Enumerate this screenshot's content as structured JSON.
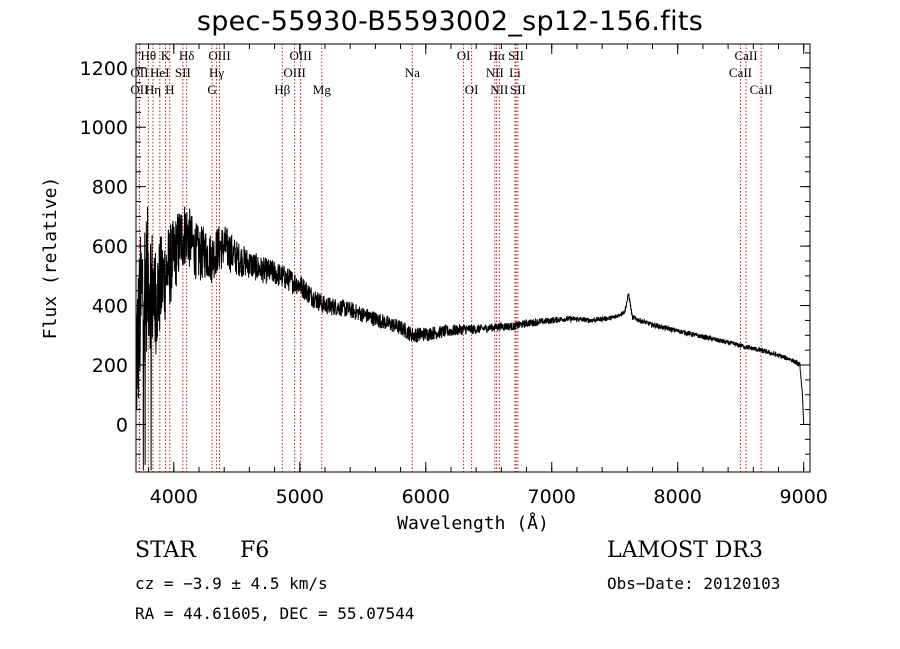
{
  "chart_data": {
    "type": "line",
    "title": "spec-55930-B5593002_sp12-156.fits",
    "xlabel": "Wavelength (Å)",
    "ylabel": "Flux (relative)",
    "xlim": [
      3700,
      9050
    ],
    "ylim": [
      -160,
      1280
    ],
    "xticks": [
      4000,
      5000,
      6000,
      7000,
      8000,
      9000
    ],
    "yticks": [
      0,
      200,
      400,
      600,
      800,
      1000,
      1200
    ],
    "lines": [
      {
        "label": "Hθ",
        "x": 3798,
        "row": 0
      },
      {
        "label": "OII",
        "x": 3727,
        "row": 1
      },
      {
        "label": "OII",
        "x": 3727,
        "row": 2
      },
      {
        "label": "K",
        "x": 3934,
        "row": 0
      },
      {
        "label": "Hη",
        "x": 3835,
        "row": 2
      },
      {
        "label": "HeI",
        "x": 3889,
        "row": 1
      },
      {
        "label": "H",
        "x": 3968,
        "row": 2
      },
      {
        "label": "SII",
        "x": 4072,
        "row": 1
      },
      {
        "label": "Hδ",
        "x": 4102,
        "row": 0
      },
      {
        "label": "OIII",
        "x": 4363,
        "row": 0
      },
      {
        "label": "Hγ",
        "x": 4340,
        "row": 1
      },
      {
        "label": "G",
        "x": 4304,
        "row": 2
      },
      {
        "label": "Hβ",
        "x": 4861,
        "row": 2
      },
      {
        "label": "OIII",
        "x": 5007,
        "row": 0
      },
      {
        "label": "OIII",
        "x": 4959,
        "row": 1
      },
      {
        "label": "Mg",
        "x": 5175,
        "row": 2
      },
      {
        "label": "Na",
        "x": 5893,
        "row": 1
      },
      {
        "label": "OI",
        "x": 6300,
        "row": 0
      },
      {
        "label": "OI",
        "x": 6364,
        "row": 2
      },
      {
        "label": "Hα",
        "x": 6563,
        "row": 0
      },
      {
        "label": "SII",
        "x": 6717,
        "row": 0
      },
      {
        "label": "NII",
        "x": 6548,
        "row": 1
      },
      {
        "label": "Li",
        "x": 6708,
        "row": 1
      },
      {
        "label": "NII",
        "x": 6584,
        "row": 2
      },
      {
        "label": "SII",
        "x": 6731,
        "row": 2
      },
      {
        "label": "CaII",
        "x": 8542,
        "row": 0
      },
      {
        "label": "CaII",
        "x": 8498,
        "row": 1
      },
      {
        "label": "CaII",
        "x": 8662,
        "row": 2
      }
    ],
    "spectrum": {
      "x": [
        3700,
        3750,
        3800,
        3850,
        3900,
        3950,
        4000,
        4050,
        4100,
        4150,
        4200,
        4250,
        4300,
        4350,
        4400,
        4450,
        4500,
        4600,
        4700,
        4800,
        4900,
        5000,
        5100,
        5200,
        5300,
        5400,
        5500,
        5600,
        5700,
        5800,
        5900,
        6000,
        6100,
        6200,
        6300,
        6400,
        6500,
        6600,
        6700,
        6800,
        6900,
        7000,
        7100,
        7200,
        7300,
        7400,
        7500,
        7580,
        7610,
        7640,
        7700,
        7800,
        7900,
        8000,
        8100,
        8200,
        8300,
        8400,
        8500,
        8600,
        8700,
        8800,
        8900,
        8970,
        8990,
        9000
      ],
      "y": [
        200,
        450,
        500,
        420,
        470,
        520,
        560,
        620,
        650,
        600,
        570,
        580,
        560,
        590,
        600,
        580,
        560,
        540,
        520,
        510,
        490,
        470,
        430,
        400,
        395,
        385,
        370,
        355,
        340,
        325,
        300,
        305,
        310,
        315,
        320,
        320,
        325,
        330,
        330,
        340,
        345,
        350,
        355,
        355,
        350,
        355,
        360,
        380,
        440,
        360,
        350,
        335,
        325,
        315,
        305,
        295,
        285,
        275,
        265,
        255,
        245,
        232,
        218,
        200,
        100,
        0
      ],
      "noise": [
        280,
        260,
        240,
        200,
        170,
        150,
        130,
        120,
        110,
        100,
        95,
        90,
        85,
        80,
        75,
        70,
        60,
        50,
        45,
        42,
        40,
        38,
        35,
        32,
        30,
        28,
        27,
        26,
        26,
        26,
        26,
        24,
        22,
        20,
        18,
        16,
        14,
        14,
        14,
        13,
        12,
        11,
        10,
        9,
        8,
        8,
        8,
        8,
        8,
        8,
        8,
        8,
        8,
        8,
        8,
        8,
        8,
        8,
        8,
        8,
        8,
        8,
        8,
        8,
        8,
        8
      ]
    }
  },
  "footer": {
    "obj_type": "STAR",
    "subclass": "F6",
    "survey": "LAMOST DR3",
    "cz": "cz = −3.9 ± 4.5 km/s",
    "obs_date": "Obs−Date: 20120103",
    "coords": "RA =  44.61605, DEC =  55.07544"
  }
}
